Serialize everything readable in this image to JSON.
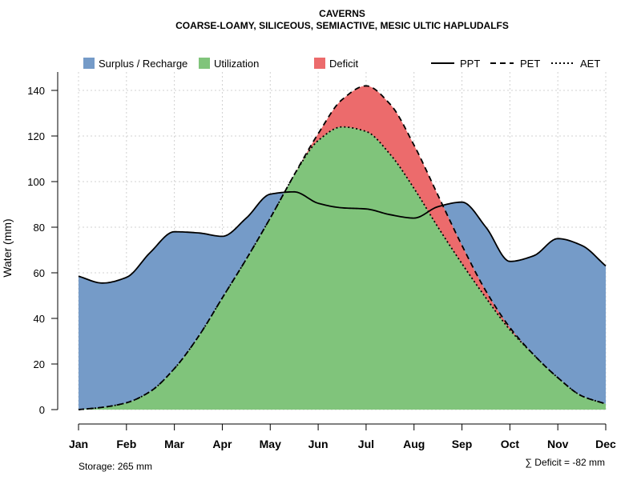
{
  "chart_data": {
    "type": "area",
    "title": "CAVERNS",
    "subtitle": "COARSE-LOAMY, SILICEOUS, SEMIACTIVE, MESIC ULTIC HAPLUDALFS",
    "xlabel": "",
    "ylabel": "Water (mm)",
    "categories": [
      "Jan",
      "Feb",
      "Mar",
      "Apr",
      "May",
      "Jun",
      "Jul",
      "Aug",
      "Sep",
      "Oct",
      "Nov",
      "Dec"
    ],
    "ylim": [
      0,
      148
    ],
    "yticks": [
      0,
      20,
      40,
      60,
      80,
      100,
      120,
      140
    ],
    "grid": true,
    "series": [
      {
        "name": "PPT",
        "style": "solid",
        "x": [
          1,
          1.5,
          2,
          2.5,
          3,
          3.5,
          4,
          4.5,
          5,
          5.5,
          6,
          6.5,
          7,
          7.5,
          8,
          8.5,
          9,
          9.5,
          10,
          10.5,
          11,
          11.5,
          12
        ],
        "values": [
          58.5,
          55.5,
          58,
          69,
          78,
          77.5,
          76,
          84,
          94.5,
          95.5,
          90.5,
          88.5,
          88,
          85.5,
          84,
          89,
          91,
          80,
          65,
          67.5,
          75,
          72,
          63
        ]
      },
      {
        "name": "PET",
        "style": "dashed",
        "x": [
          1,
          1.5,
          2,
          2.5,
          3,
          3.5,
          4,
          4.5,
          5,
          5.5,
          6,
          6.5,
          7,
          7.5,
          8,
          8.5,
          9,
          9.5,
          10,
          10.5,
          11,
          11.5,
          12
        ],
        "values": [
          0,
          1,
          3,
          8,
          18,
          32,
          49,
          66,
          84,
          103,
          121,
          136,
          142,
          134,
          116,
          94,
          72,
          52,
          36,
          24,
          14,
          6,
          2.5
        ]
      },
      {
        "name": "AET",
        "style": "dotted",
        "x": [
          1,
          1.5,
          2,
          2.5,
          3,
          3.5,
          4,
          4.5,
          5,
          5.5,
          6,
          6.5,
          7,
          7.5,
          8,
          8.5,
          9,
          9.5,
          10,
          10.5,
          11,
          11.5,
          12
        ],
        "values": [
          0,
          1,
          3,
          8,
          18,
          32,
          49,
          66,
          84,
          103,
          118,
          124,
          122,
          112,
          97,
          80,
          64,
          49,
          35,
          24,
          14,
          6,
          2.5
        ]
      }
    ],
    "legend": {
      "placement": "top",
      "fills": [
        {
          "label": "Surplus / Recharge",
          "color": "#759bc8"
        },
        {
          "label": "Utilization",
          "color": "#80c47b"
        },
        {
          "label": "Deficit",
          "color": "#ec6b6c"
        }
      ],
      "lines": [
        {
          "label": "PPT",
          "style": "solid"
        },
        {
          "label": "PET",
          "style": "dashed"
        },
        {
          "label": "AET",
          "style": "dotted"
        }
      ]
    },
    "annotations": {
      "storage": "Storage: 265 mm",
      "deficit": "∑ Deficit = -82 mm"
    },
    "colors": {
      "surplus": "#759bc8",
      "utilization": "#80c47b",
      "deficit": "#ec6b6c"
    }
  }
}
